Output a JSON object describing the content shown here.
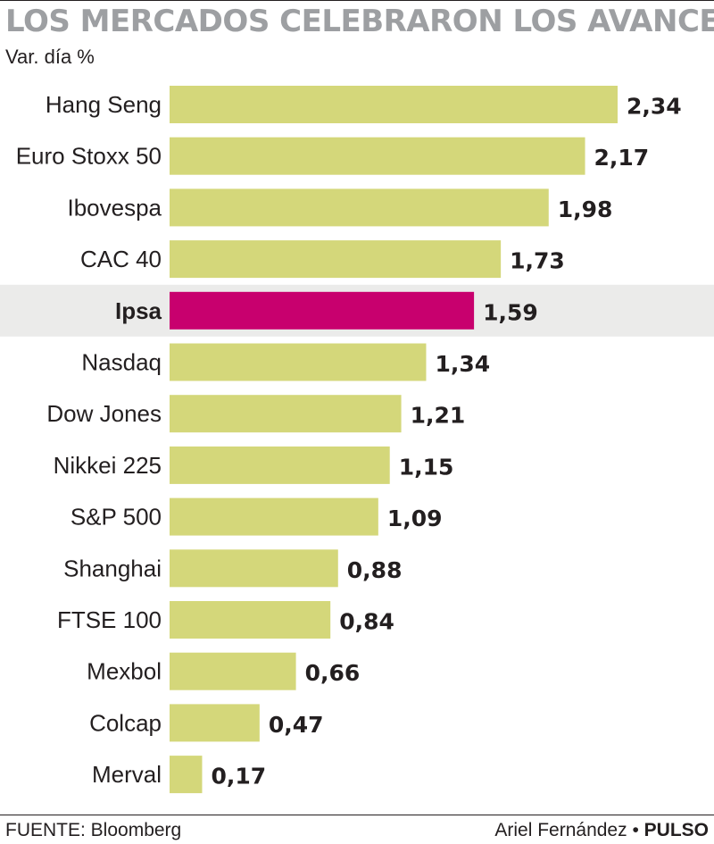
{
  "header": {
    "title": "LOS MERCADOS CELEBRARON LOS AVANCES",
    "subtitle": "Var. día %"
  },
  "footer": {
    "source": "FUENTE: Bloomberg",
    "author": "Ariel Fernández",
    "separator": "•",
    "publication": "PULSO"
  },
  "colors": {
    "bar": "#d4d77a",
    "highlight_bar": "#c8006e",
    "highlight_band": "#ebebea",
    "text": "#231f20"
  },
  "chart_data": {
    "type": "bar",
    "orientation": "horizontal",
    "title": "LOS MERCADOS CELEBRARON LOS AVANCES",
    "subtitle": "Var. día %",
    "categories": [
      "Hang Seng",
      "Euro Stoxx 50",
      "Ibovespa",
      "CAC 40",
      "Ipsa",
      "Nasdaq",
      "Dow Jones",
      "Nikkei 225",
      "S&P 500",
      "Shanghai",
      "FTSE 100",
      "Mexbol",
      "Colcap",
      "Merval"
    ],
    "values": [
      2.34,
      2.17,
      1.98,
      1.73,
      1.59,
      1.34,
      1.21,
      1.15,
      1.09,
      0.88,
      0.84,
      0.66,
      0.47,
      0.17
    ],
    "value_labels": [
      "2,34",
      "2,17",
      "1,98",
      "1,73",
      "1,59",
      "1,34",
      "1,21",
      "1,15",
      "1,09",
      "0,88",
      "0,84",
      "0,66",
      "0,47",
      "0,17"
    ],
    "highlight": "Ipsa",
    "xlim": [
      0,
      2.34
    ],
    "grid": false,
    "legend": "none"
  }
}
